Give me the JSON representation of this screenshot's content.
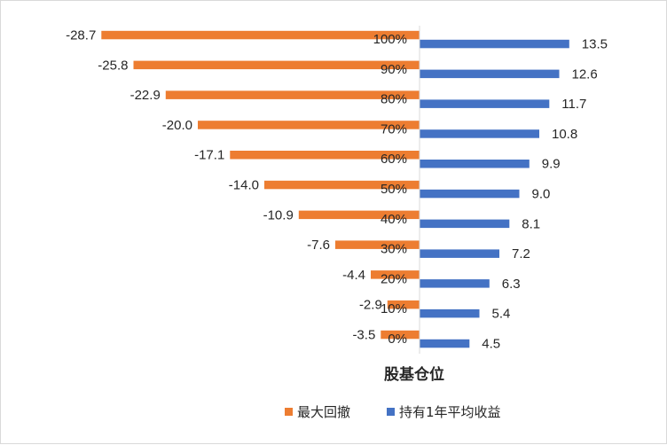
{
  "chart_data": {
    "type": "bar",
    "orientation": "horizontal",
    "xlabel": "股基仓位",
    "categories": [
      "0%",
      "10%",
      "20%",
      "30%",
      "40%",
      "50%",
      "60%",
      "70%",
      "80%",
      "90%",
      "100%"
    ],
    "series": [
      {
        "name": "最大回撤",
        "color": "#ED7D31",
        "values": [
          -3.5,
          -2.9,
          -4.4,
          -7.6,
          -10.9,
          -14.0,
          -17.1,
          -20.0,
          -22.9,
          -25.8,
          -28.7
        ],
        "labels": [
          "-3.5",
          "-2.9",
          "-4.4",
          "-7.6",
          "-10.9",
          "-14.0",
          "-17.1",
          "-20.0",
          "-22.9",
          "-25.8",
          "-28.7"
        ]
      },
      {
        "name": "持有1年平均收益",
        "color": "#4472C4",
        "values": [
          4.5,
          5.4,
          6.3,
          7.2,
          8.1,
          9.0,
          9.9,
          10.8,
          11.7,
          12.6,
          13.5
        ],
        "labels": [
          "4.5",
          "5.4",
          "6.3",
          "7.2",
          "8.1",
          "9.0",
          "9.9",
          "10.8",
          "11.7",
          "12.6",
          "13.5"
        ]
      }
    ],
    "legend_position": "bottom",
    "grid": false
  }
}
